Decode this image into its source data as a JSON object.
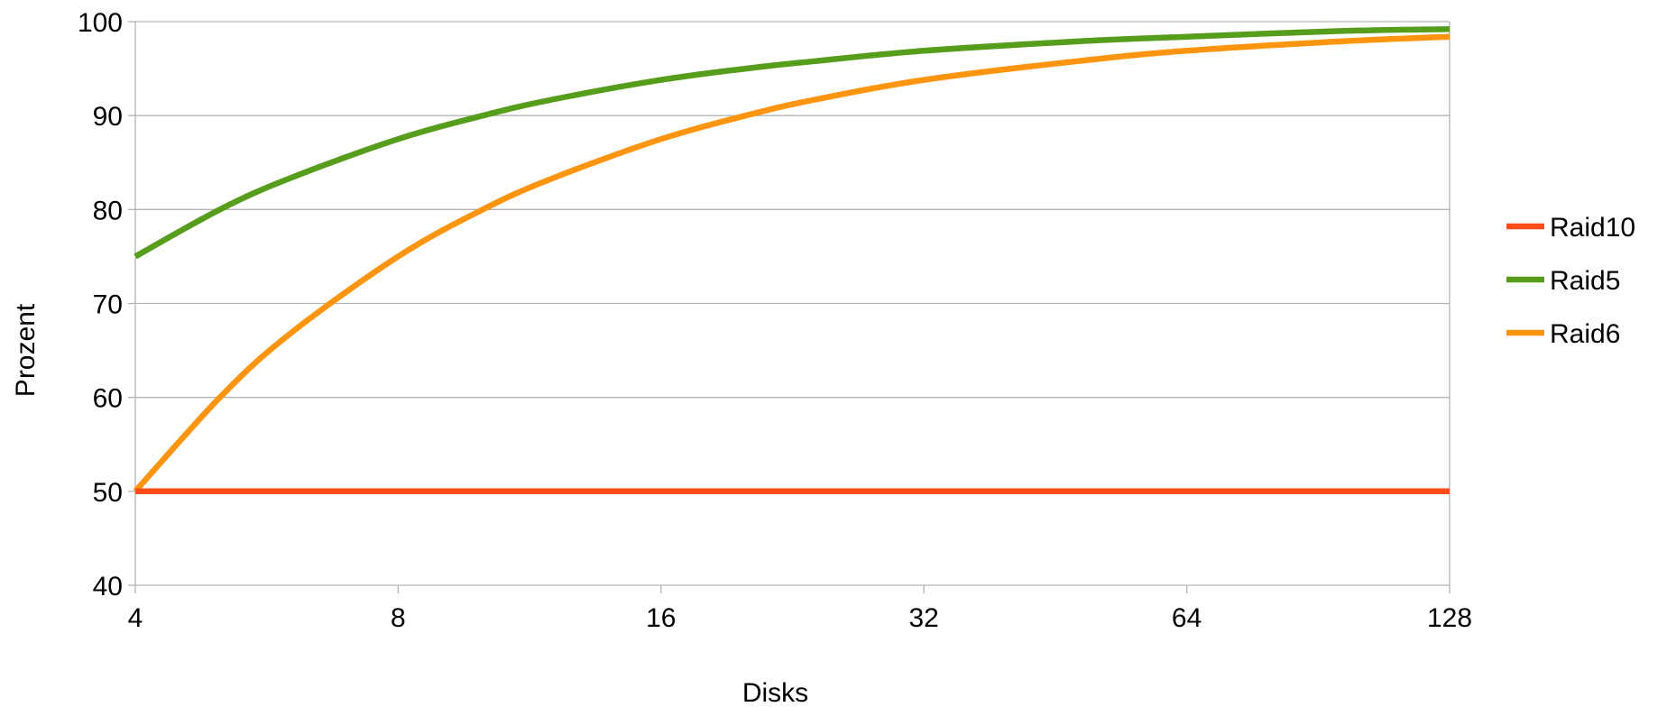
{
  "chart_data": {
    "type": "line",
    "title": "",
    "xlabel": "Disks",
    "ylabel": "Prozent",
    "x_scale": "log2",
    "x_ticks": [
      4,
      8,
      16,
      32,
      64,
      128
    ],
    "x_tick_labels": [
      "4",
      "8",
      "16",
      "32",
      "64",
      "128"
    ],
    "xlim": [
      4,
      128
    ],
    "y_ticks": [
      40,
      50,
      60,
      70,
      80,
      90,
      100
    ],
    "y_tick_labels": [
      "40",
      "50",
      "60",
      "70",
      "80",
      "90",
      "100"
    ],
    "ylim": [
      40,
      100
    ],
    "grid": "horizontal",
    "legend_position": "right",
    "series": [
      {
        "name": "Raid10",
        "color": "#ff4a1a",
        "x": [
          4,
          8,
          16,
          32,
          64,
          128
        ],
        "values": [
          50,
          50,
          50,
          50,
          50,
          50
        ]
      },
      {
        "name": "Raid5",
        "color": "#579d1c",
        "x": [
          4,
          5,
          6,
          8,
          10,
          12,
          16,
          20,
          24,
          32,
          48,
          64,
          96,
          128
        ],
        "values": [
          75,
          80,
          83.3,
          87.5,
          90,
          91.7,
          93.8,
          95,
          95.8,
          96.9,
          97.9,
          98.4,
          99,
          99.2
        ]
      },
      {
        "name": "Raid6",
        "color": "#ff950e",
        "x": [
          4,
          5,
          6,
          8,
          10,
          12,
          16,
          20,
          24,
          32,
          48,
          64,
          96,
          128
        ],
        "values": [
          50,
          60,
          66.7,
          75,
          80,
          83.3,
          87.5,
          90,
          91.7,
          93.8,
          95.8,
          96.9,
          97.9,
          98.4
        ]
      }
    ]
  }
}
